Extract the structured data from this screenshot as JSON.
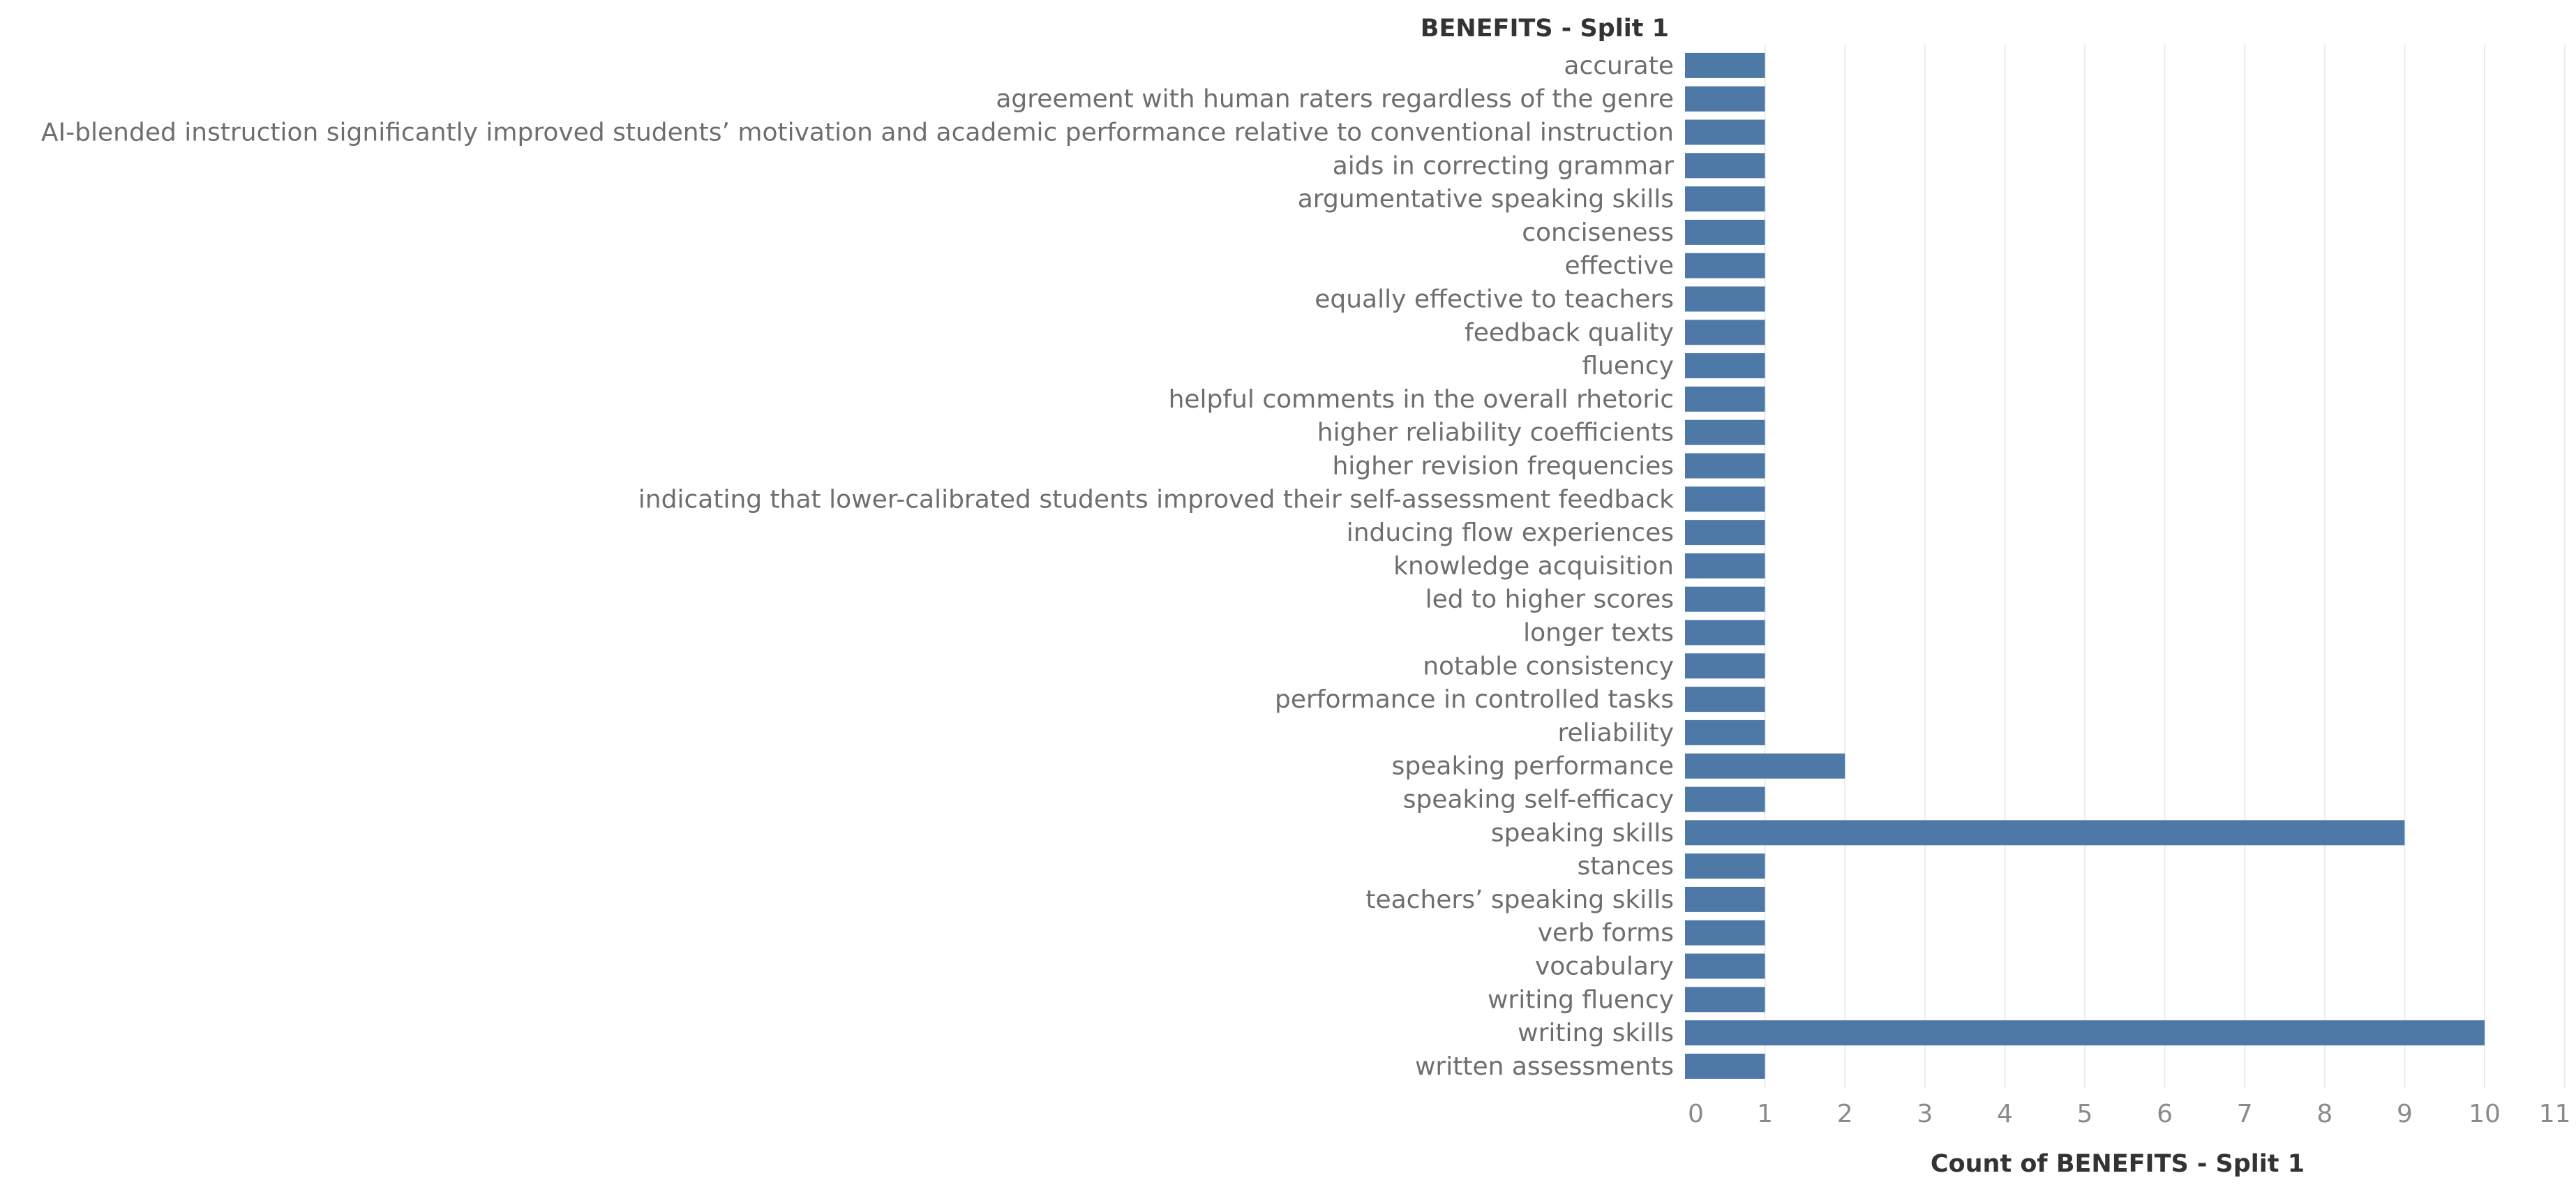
{
  "chart_data": {
    "type": "bar",
    "orientation": "horizontal",
    "title": "",
    "row_header": "BENEFITS - Split 1",
    "xlabel": "Count of BENEFITS - Split 1",
    "ylabel": "",
    "xlim": [
      0,
      11
    ],
    "xticks": [
      "0",
      "1",
      "2",
      "3",
      "4",
      "5",
      "6",
      "7",
      "8",
      "9",
      "10",
      "11"
    ],
    "grid": true,
    "bar_color": "#4e79a7",
    "categories": [
      "accurate",
      "agreement with human raters regardless of the genre",
      "AI-blended instruction significantly improved students’ motivation and academic performance relative to conventional instruction",
      "aids in correcting grammar",
      "argumentative speaking skills",
      "conciseness",
      "effective",
      "equally effective to teachers",
      "feedback quality",
      "fluency",
      "helpful comments in the overall rhetoric",
      "higher reliability coefficients",
      "higher revision frequencies",
      "indicating that lower-calibrated students improved their self-assessment feedback",
      "inducing flow experiences",
      "knowledge acquisition",
      "led to higher scores",
      "longer texts",
      "notable consistency",
      "performance in controlled tasks",
      "reliability",
      "speaking performance",
      "speaking self-efficacy",
      "speaking skills",
      "stances",
      "teachers’ speaking skills",
      "verb forms",
      "vocabulary",
      "writing fluency",
      "writing skills",
      "written assessments"
    ],
    "values": [
      1,
      1,
      1,
      1,
      1,
      1,
      1,
      1,
      1,
      1,
      1,
      1,
      1,
      1,
      1,
      1,
      1,
      1,
      1,
      1,
      1,
      2,
      1,
      9,
      1,
      1,
      1,
      1,
      1,
      10,
      1
    ]
  }
}
